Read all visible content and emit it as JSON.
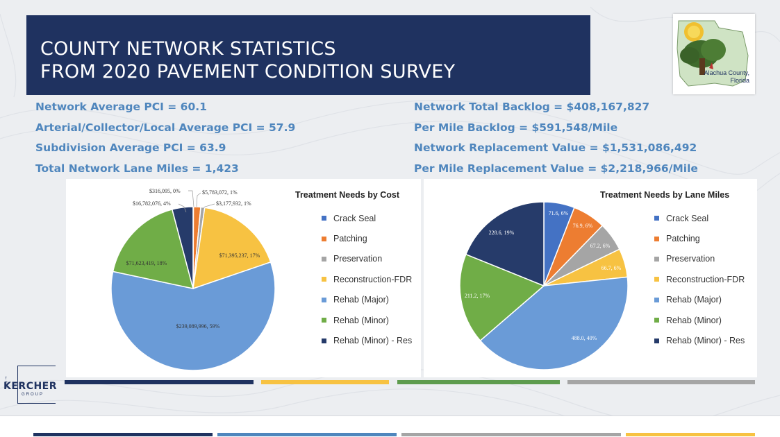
{
  "title": {
    "line1": "COUNTY NETWORK STATISTICS",
    "line2": "FROM 2020 PAVEMENT CONDITION SURVEY"
  },
  "logo": {
    "line1": "Alachua County,",
    "line2": "Florida"
  },
  "stats_left": [
    "Network Average PCI = 60.1",
    "Arterial/Collector/Local Average PCI = 57.9",
    "Subdivision Average PCI = 63.9",
    "Total Network Lane Miles = 1,423"
  ],
  "stats_right": [
    "Network Total Backlog = $408,167,827",
    "Per Mile Backlog = $591,548/Mile",
    "Network Replacement Value = $1,531,086,492",
    "Per Mile Replacement Value = $2,218,966/Mile"
  ],
  "colors": {
    "crack_seal": "#4472c4",
    "patching": "#ed7d31",
    "preservation": "#a5a5a5",
    "reconstruction": "#f7c242",
    "rehab_major": "#6a9bd7",
    "rehab_minor": "#70ad47",
    "rehab_minor_res": "#263b6a",
    "navy": "#1f3260"
  },
  "chart_data": [
    {
      "type": "pie",
      "title": "Treatment Needs by Cost",
      "categories": [
        "Crack Seal",
        "Patching",
        "Preservation",
        "Reconstruction-FDR",
        "Rehab (Major)",
        "Rehab (Minor)",
        "Rehab (Minor) - Res"
      ],
      "values": [
        316095,
        5783072,
        3177932,
        71395237,
        239089996,
        71623419,
        16782076
      ],
      "data_labels": [
        "$316,095, 0%",
        "$5,783,072, 1%",
        "$3,177,932, 1%",
        "$71,395,237, 17%",
        "$239,089,996, 59%",
        "$71,623,419, 18%",
        "$16,782,076, 4%"
      ],
      "legend_position": "right"
    },
    {
      "type": "pie",
      "title": "Treatment Needs by Lane Miles",
      "categories": [
        "Crack Seal",
        "Patching",
        "Preservation",
        "Reconstruction-FDR",
        "Rehab (Major)",
        "Rehab (Minor)",
        "Rehab (Minor) - Res"
      ],
      "values": [
        71.6,
        76.9,
        67.2,
        66.7,
        488.0,
        211.2,
        228.6
      ],
      "data_labels": [
        "71.6, 6%",
        "76.9, 6%",
        "67.2, 6%",
        "66.7, 6%",
        "488.0, 40%",
        "211.2, 17%",
        "228.6, 19%"
      ],
      "legend_position": "right"
    }
  ]
}
